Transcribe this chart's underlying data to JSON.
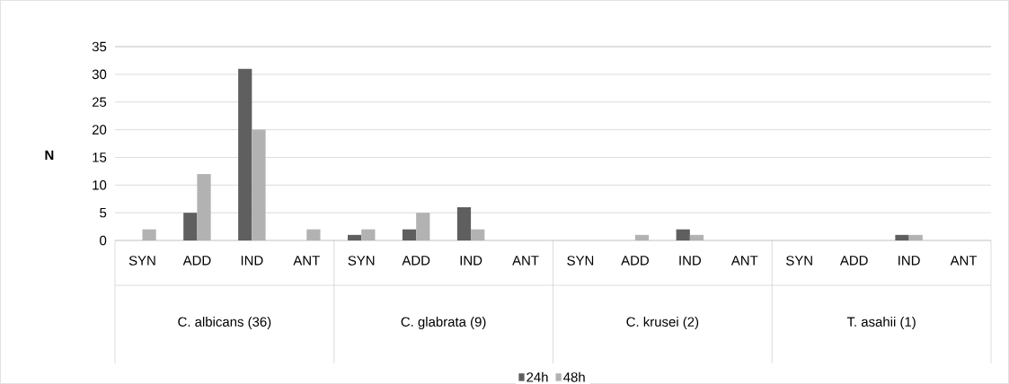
{
  "chart_data": {
    "type": "bar",
    "ylabel": "N",
    "categories": [
      "SYN",
      "ADD",
      "IND",
      "ANT",
      "SYN",
      "ADD",
      "IND",
      "ANT",
      "SYN",
      "ADD",
      "IND",
      "ANT",
      "SYN",
      "ADD",
      "IND",
      "ANT"
    ],
    "series": [
      {
        "name": "24h",
        "color": "#5f5f5f",
        "values": [
          0,
          5,
          31,
          0,
          1,
          2,
          6,
          0,
          0,
          0,
          2,
          0,
          0,
          0,
          1,
          0
        ]
      },
      {
        "name": "48h",
        "color": "#b2b2b2",
        "values": [
          2,
          12,
          20,
          2,
          2,
          5,
          2,
          0,
          0,
          1,
          1,
          0,
          0,
          0,
          1,
          0
        ]
      }
    ],
    "annotations": [
      "C. albicans (36)",
      "C. glabrata (9)",
      "C. krusei (2)",
      "T. asahii (1)"
    ],
    "ylim": [
      0,
      35
    ],
    "yticks": [
      0,
      5,
      10,
      15,
      20,
      25,
      30,
      35
    ],
    "grid": "y",
    "legend": "bottom"
  }
}
